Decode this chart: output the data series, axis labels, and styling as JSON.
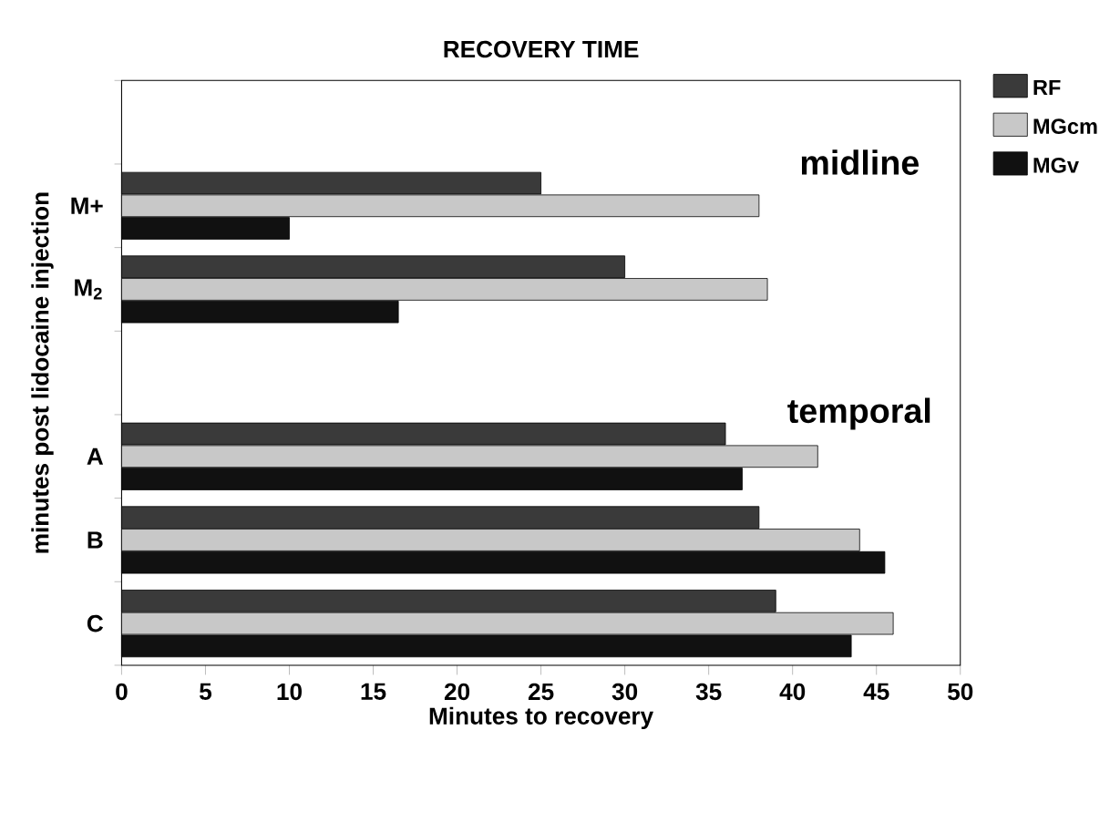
{
  "chart_data": {
    "type": "bar",
    "orientation": "horizontal",
    "title": "RECOVERY TIME",
    "xlabel": "Minutes to recovery",
    "ylabel": "minutes post lidocaine injection",
    "categories": [
      null,
      "M+",
      "M$_{2}$",
      null,
      "A",
      "B",
      "C"
    ],
    "series": [
      {
        "name": "RF",
        "color": "#3a3a3a",
        "values": [
          null,
          25,
          30,
          null,
          36,
          38,
          39
        ]
      },
      {
        "name": "MGcm",
        "color": "#c8c8c8",
        "values": [
          null,
          38,
          38.5,
          null,
          41.5,
          44,
          46
        ]
      },
      {
        "name": "MGv",
        "color": "#111111",
        "values": [
          null,
          10,
          16.5,
          null,
          37,
          45.5,
          43.5
        ]
      }
    ],
    "xlim": [
      0,
      50
    ],
    "xticks": [
      0,
      5,
      10,
      15,
      20,
      25,
      30,
      35,
      40,
      45,
      50
    ],
    "annotations": [
      "midline",
      "temporal"
    ],
    "legend": "top right",
    "grid": false
  }
}
